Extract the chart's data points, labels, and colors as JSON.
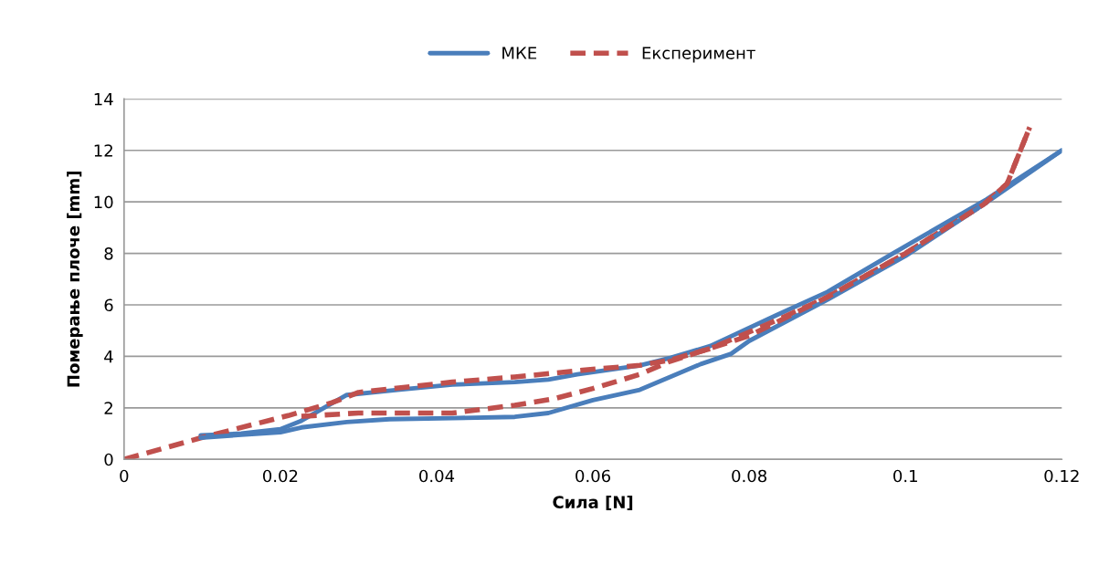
{
  "chart_data": {
    "type": "line",
    "xlabel": "Сила [N]",
    "ylabel": "Померање плоче [mm]",
    "xlim": [
      0,
      0.12
    ],
    "xticks": [
      {
        "value": 0,
        "label": "0"
      },
      0.02,
      0.04,
      0.06,
      0.08,
      0.1,
      0.12
    ],
    "ylim": [
      0,
      14
    ],
    "yticks": [
      0,
      2,
      4,
      6,
      8,
      10,
      12,
      14
    ],
    "grid": "y",
    "legend": "top",
    "marker": "none",
    "series": [
      {
        "name": "МКЕ",
        "color": "#4a7ebb",
        "line_style": "solid",
        "x": [
          0.0098,
          0.015,
          0.02,
          0.0227,
          0.0285,
          0.035,
          0.042,
          0.05,
          0.0543,
          0.058,
          0.066,
          0.07,
          0.075,
          0.0835,
          0.09,
          0.0984,
          0.1104,
          0.12
        ],
        "values": [
          0.93,
          1.0,
          1.17,
          1.5,
          2.5,
          2.7,
          2.9,
          3.0,
          3.1,
          3.3,
          3.65,
          3.95,
          4.4,
          5.6,
          6.5,
          8.0,
          10.1,
          12.0
        ]
      },
      {
        "name": "Експеримент",
        "color": "#c0504d",
        "line_style": "dashed",
        "x": [
          0,
          0.01,
          0.021,
          0.0266,
          0.03,
          0.042,
          0.05,
          0.06,
          0.066,
          0.0698,
          0.075,
          0.0835,
          0.09,
          0.1,
          0.11,
          0.113,
          0.1159
        ],
        "values": [
          0,
          0.85,
          1.7,
          2.2,
          2.6,
          3.0,
          3.2,
          3.5,
          3.65,
          3.85,
          4.3,
          5.4,
          6.3,
          8.0,
          9.9,
          10.7,
          12.9
        ]
      },
      {
        "color": "#4a7ebb",
        "line_style": "solid",
        "x": [
          0.0098,
          0.015,
          0.02,
          0.0227,
          0.0285,
          0.034,
          0.042,
          0.05,
          0.0543,
          0.06,
          0.066,
          0.0738,
          0.0777,
          0.08,
          0.09,
          0.1,
          0.11,
          0.12
        ],
        "values": [
          0.84,
          0.95,
          1.05,
          1.24,
          1.45,
          1.56,
          1.6,
          1.65,
          1.8,
          2.3,
          2.7,
          3.7,
          4.1,
          4.6,
          6.2,
          7.9,
          9.9,
          12.0
        ]
      },
      {
        "color": "#c0504d",
        "line_style": "dashed",
        "x": [
          0.0227,
          0.03,
          0.042,
          0.05,
          0.055,
          0.06,
          0.066,
          0.0698,
          0.08,
          0.09,
          0.1,
          0.11,
          0.113,
          0.1159
        ],
        "values": [
          1.67,
          1.8,
          1.8,
          2.1,
          2.35,
          2.75,
          3.3,
          3.8,
          4.8,
          6.3,
          8.0,
          9.9,
          10.7,
          12.9
        ]
      }
    ]
  }
}
